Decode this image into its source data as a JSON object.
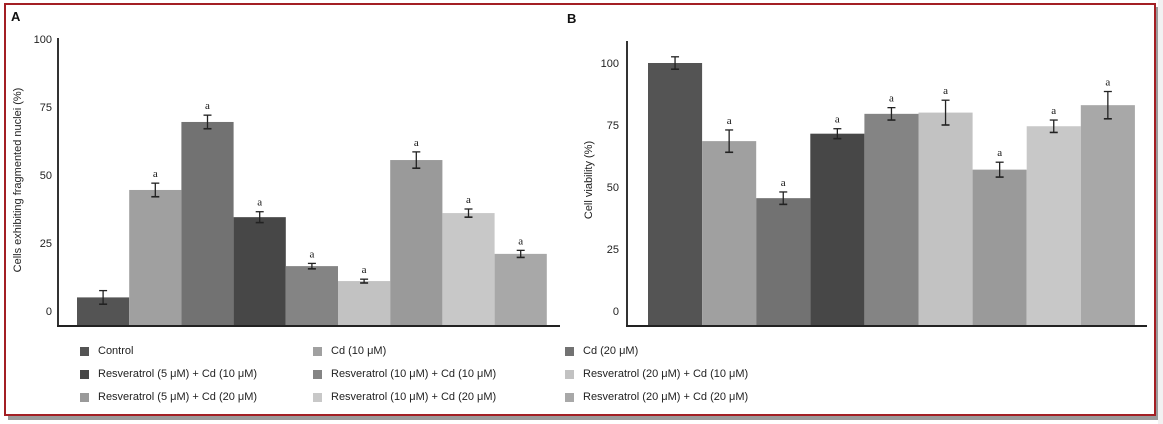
{
  "chart_data": [
    {
      "type": "bar",
      "panel": "A",
      "title": "",
      "xlabel": "",
      "ylabel": "Cells exhibiting fragmented nuclei (%)",
      "ylim": [
        0,
        100
      ],
      "yticks": [
        "0",
        "25",
        "50",
        "75",
        "100"
      ],
      "grid": false,
      "categories": [
        "Control",
        "Cd (10 μM)",
        "Cd (20 μM)",
        "Resveratrol (5 μM) + Cd (10 μM)",
        "Resveratrol (10 μM) + Cd (10 μM)",
        "Resveratrol (20 μM) + Cd (10 μM)",
        "Resveratrol (5 μM) + Cd (20 μM)",
        "Resveratrol (10 μM) + Cd (20 μM)",
        "Resveratrol (20 μM) + Cd (20 μM)"
      ],
      "values": [
        5,
        44.5,
        69.5,
        34.5,
        16.5,
        11,
        55.5,
        36,
        21
      ],
      "errors": [
        2.5,
        2.5,
        2.5,
        2,
        1,
        0.7,
        3,
        1.5,
        1.3
      ],
      "annotations": [
        "",
        "a",
        "a",
        "a",
        "a",
        "a",
        "a",
        "a",
        "a"
      ]
    },
    {
      "type": "bar",
      "panel": "B",
      "title": "",
      "xlabel": "",
      "ylabel": "Cell viability (%)",
      "ylim": [
        0,
        100
      ],
      "yticks": [
        "0",
        "25",
        "50",
        "75",
        "100"
      ],
      "grid": false,
      "categories": [
        "Control",
        "Cd (10 μM)",
        "Cd (20 μM)",
        "Resveratrol (5 μM) + Cd (10 μM)",
        "Resveratrol (10 μM) + Cd (10 μM)",
        "Resveratrol (20 μM) + Cd (10 μM)",
        "Resveratrol (5 μM) + Cd (20 μM)",
        "Resveratrol (10 μM) + Cd (20 μM)",
        "Resveratrol (20 μM) + Cd (20 μM)"
      ],
      "values": [
        100,
        68.5,
        45.5,
        71.5,
        79.5,
        80,
        57,
        74.5,
        83
      ],
      "errors": [
        2.5,
        4.5,
        2.5,
        2,
        2.5,
        5,
        3,
        2.5,
        5.5
      ],
      "annotations": [
        "",
        "a",
        "a",
        "a",
        "a",
        "a",
        "a",
        "a",
        "a"
      ]
    }
  ],
  "legend": {
    "placement": "bottom",
    "items": [
      {
        "label": "Control",
        "color": "#545454"
      },
      {
        "label": "Cd (10 μM)",
        "color": "#a0a0a0"
      },
      {
        "label": "Cd (20 μM)",
        "color": "#727272"
      },
      {
        "label": "Resveratrol (5 μM) + Cd (10 μM)",
        "color": "#474747"
      },
      {
        "label": "Resveratrol (10 μM) + Cd (10 μM)",
        "color": "#848484"
      },
      {
        "label": "Resveratrol (20 μM) + Cd (10 μM)",
        "color": "#c2c2c2"
      },
      {
        "label": "Resveratrol (5 μM) + Cd (20 μM)",
        "color": "#9a9a9a"
      },
      {
        "label": "Resveratrol (10 μM) + Cd (20 μM)",
        "color": "#c8c8c8"
      },
      {
        "label": "Resveratrol (20 μM) + Cd (20 μM)",
        "color": "#a8a8a8"
      }
    ]
  },
  "frame": {
    "border_color": "#a31f24"
  }
}
